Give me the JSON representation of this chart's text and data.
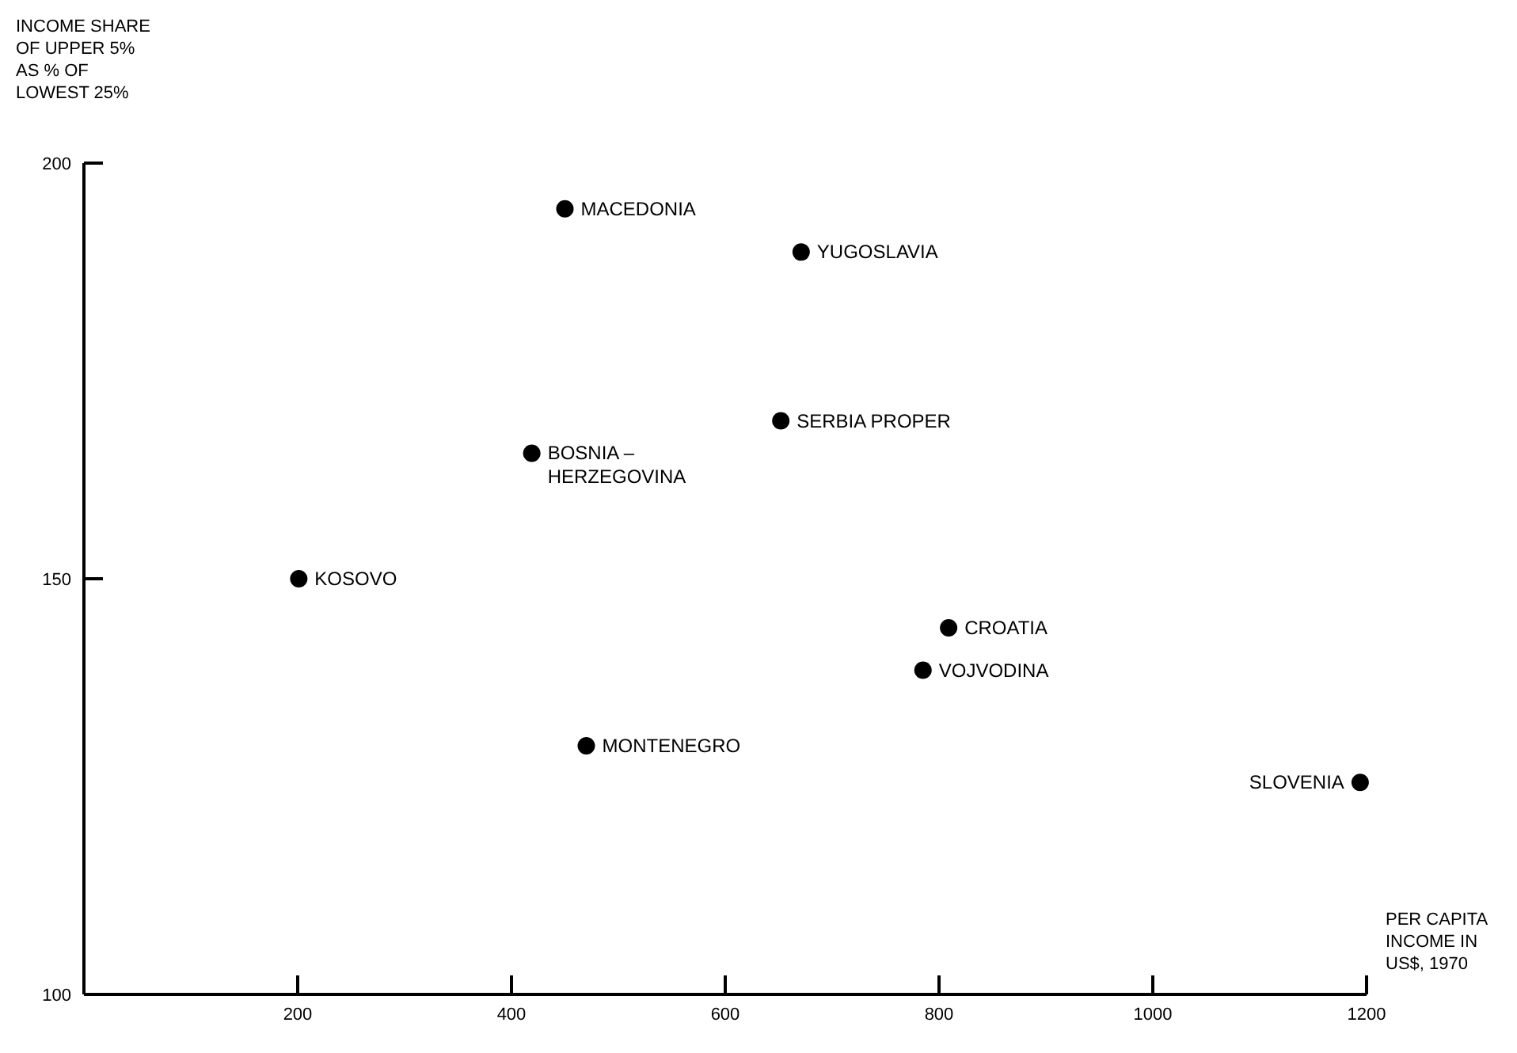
{
  "chart_data": {
    "type": "scatter",
    "xlabel": "PER CAPITA INCOME IN US$, 1970",
    "ylabel": "INCOME SHARE OF UPPER 5% AS % OF LOWEST 25%",
    "xlim": [
      0,
      1200
    ],
    "ylim": [
      100,
      200
    ],
    "xticks": [
      200,
      400,
      600,
      800,
      1000,
      1200
    ],
    "yticks": [
      100,
      150,
      200
    ],
    "grid": false,
    "marker": "circle",
    "series": [
      {
        "name": "MACEDONIA",
        "color": "#000000",
        "x": [
          450
        ],
        "values": [
          194.5
        ]
      },
      {
        "name": "YUGOSLAVIA",
        "color": "#000000",
        "x": [
          671
        ],
        "values": [
          189.3
        ]
      },
      {
        "name": "SERBIA PROPER",
        "color": "#000000",
        "x": [
          652
        ],
        "values": [
          169
        ]
      },
      {
        "name": "BOSNIA – HERZEGOVINA",
        "color": "#000000",
        "x": [
          419
        ],
        "values": [
          165.1
        ]
      },
      {
        "name": "KOSOVO",
        "color": "#000000",
        "x": [
          201
        ],
        "values": [
          150
        ]
      },
      {
        "name": "CROATIA",
        "color": "#000000",
        "x": [
          809
        ],
        "values": [
          144.1
        ]
      },
      {
        "name": "VOJVODINA",
        "color": "#000000",
        "x": [
          785
        ],
        "values": [
          139
        ]
      },
      {
        "name": "MONTENEGRO",
        "color": "#000000",
        "x": [
          470
        ],
        "values": [
          129.9
        ]
      },
      {
        "name": "SLOVENIA",
        "color": "#000000",
        "x": [
          1194
        ],
        "values": [
          125.5
        ]
      }
    ]
  }
}
